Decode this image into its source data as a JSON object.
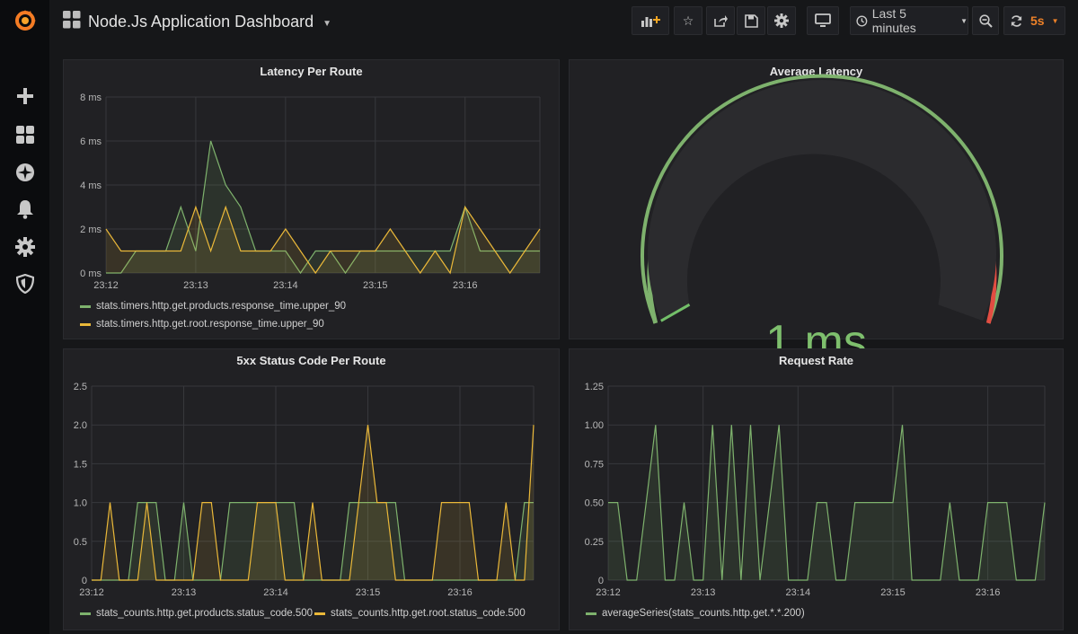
{
  "header": {
    "title": "Node.Js Application Dashboard",
    "time_range": "Last 5 minutes",
    "refresh": "5s"
  },
  "colors": {
    "green": "#7eb26d",
    "yellow": "#eab839",
    "red": "#e24d42",
    "refresh_orange": "#ed8128"
  },
  "sidebar": {
    "icons": [
      "grafana-logo-icon",
      "plus-icon",
      "dashboards-icon",
      "explore-compass-icon",
      "alert-bell-icon",
      "gear-icon",
      "shield-icon"
    ]
  },
  "panels": {
    "latency": {
      "title": "Latency Per Route",
      "legend": [
        "stats.timers.http.get.products.response_time.upper_90",
        "stats.timers.http.get.root.response_time.upper_90"
      ]
    },
    "gauge": {
      "title": "Average Latency",
      "value": "1 ms",
      "level": 0.5
    },
    "errors": {
      "title": "5xx Status Code Per Route",
      "legend": [
        "stats_counts.http.get.products.status_code.500",
        "stats_counts.http.get.root.status_code.500"
      ]
    },
    "rate": {
      "title": "Request Rate",
      "legend": [
        "averageSeries(stats_counts.http.get.*.*.200)"
      ]
    }
  },
  "chart_data": [
    {
      "type": "area",
      "title": "Latency Per Route",
      "x_ticks": [
        "23:12",
        "23:13",
        "23:14",
        "23:15",
        "23:16"
      ],
      "y_ticks": [
        "0 ms",
        "2 ms",
        "4 ms",
        "6 ms",
        "8 ms"
      ],
      "ylim": [
        0,
        8
      ],
      "xlim": [
        0,
        29
      ],
      "tick_positions": [
        0,
        6,
        12,
        18,
        24
      ],
      "series": [
        {
          "name": "stats.timers.http.get.products.response_time.upper_90",
          "color": "green",
          "values": [
            0,
            0,
            1,
            1,
            1,
            3,
            1,
            6,
            4,
            3,
            1,
            1,
            1,
            0,
            1,
            1,
            0,
            1,
            1,
            1,
            1,
            1,
            1,
            1,
            3,
            1,
            1,
            1,
            1,
            1
          ]
        },
        {
          "name": "stats.timers.http.get.root.response_time.upper_90",
          "color": "yellow",
          "values": [
            2,
            1,
            1,
            1,
            1,
            1,
            3,
            1,
            3,
            1,
            1,
            1,
            2,
            1,
            0,
            1,
            1,
            1,
            1,
            2,
            1,
            0,
            1,
            0,
            3,
            2,
            1,
            0,
            1,
            2
          ]
        }
      ]
    },
    {
      "type": "area",
      "title": "5xx Status Code Per Route",
      "x_ticks": [
        "23:12",
        "23:13",
        "23:14",
        "23:15",
        "23:16"
      ],
      "y_ticks": [
        "0",
        "0.5",
        "1.0",
        "1.5",
        "2.0",
        "2.5"
      ],
      "ylim": [
        0,
        2.5
      ],
      "xlim": [
        0,
        48
      ],
      "tick_positions": [
        0,
        10,
        20,
        30,
        40
      ],
      "series": [
        {
          "name": "stats_counts.http.get.products.status_code.500",
          "color": "green",
          "values": [
            0,
            0,
            0,
            0,
            0,
            1,
            1,
            1,
            0,
            0,
            1,
            0,
            0,
            0,
            0,
            1,
            1,
            1,
            1,
            1,
            1,
            1,
            1,
            0,
            0,
            0,
            0,
            0,
            1,
            1,
            1,
            1,
            1,
            1,
            0,
            0,
            0,
            0,
            0,
            0,
            0,
            0,
            0,
            0,
            0,
            0,
            0,
            1,
            1
          ]
        },
        {
          "name": "stats_counts.http.get.root.status_code.500",
          "color": "yellow",
          "values": [
            0,
            0,
            1,
            0,
            0,
            0,
            1,
            0,
            0,
            0,
            0,
            0,
            1,
            1,
            0,
            0,
            0,
            0,
            1,
            1,
            1,
            0,
            0,
            0,
            1,
            0,
            0,
            0,
            0,
            1,
            2,
            1,
            1,
            0,
            0,
            0,
            0,
            0,
            1,
            1,
            1,
            1,
            0,
            0,
            0,
            1,
            0,
            0,
            2
          ]
        }
      ]
    },
    {
      "type": "area",
      "title": "Request Rate",
      "x_ticks": [
        "23:12",
        "23:13",
        "23:14",
        "23:15",
        "23:16"
      ],
      "y_ticks": [
        "0",
        "0.25",
        "0.50",
        "0.75",
        "1.00",
        "1.25"
      ],
      "ylim": [
        0,
        1.25
      ],
      "xlim": [
        0,
        46
      ],
      "tick_positions": [
        0,
        10,
        20,
        30,
        40
      ],
      "series": [
        {
          "name": "averageSeries(stats_counts.http.get.*.*.200)",
          "color": "green",
          "values": [
            0.5,
            0.5,
            0,
            0,
            0.5,
            1,
            0,
            0,
            0.5,
            0,
            0,
            1,
            0,
            1,
            0,
            1,
            0,
            0.5,
            1,
            0,
            0,
            0,
            0.5,
            0.5,
            0,
            0,
            0.5,
            0.5,
            0.5,
            0.5,
            0.5,
            1,
            0,
            0,
            0,
            0,
            0.5,
            0,
            0,
            0,
            0.5,
            0.5,
            0.5,
            0,
            0,
            0,
            0.5
          ]
        }
      ]
    }
  ]
}
